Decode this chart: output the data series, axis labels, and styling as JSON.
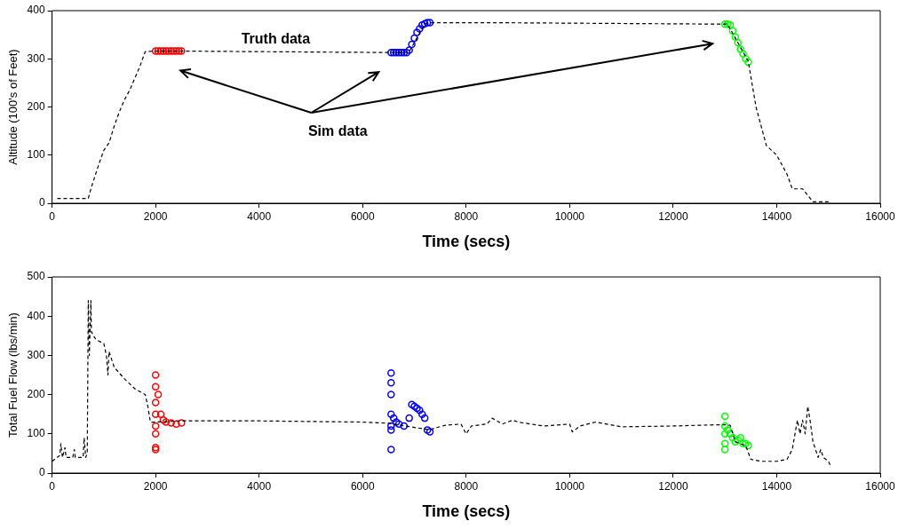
{
  "chart_data": [
    {
      "type": "line",
      "xlabel": "Time (secs)",
      "ylabel": "Altitude (100's of Feet)",
      "xlim": [
        0,
        16000
      ],
      "xticks": [
        0,
        2000,
        4000,
        6000,
        8000,
        10000,
        12000,
        14000,
        16000
      ],
      "ylim": [
        0,
        400
      ],
      "yticks": [
        0,
        100,
        200,
        300,
        400
      ],
      "grid": false,
      "legend": false,
      "annotations": [
        "Truth data",
        "Sim data"
      ],
      "series": [
        {
          "color": "#000000",
          "line_style": "dashed",
          "marker": "none",
          "x": [
            100,
            700,
            750,
            900,
            1000,
            1100,
            1200,
            1300,
            1400,
            1500,
            1600,
            1700,
            1800,
            2000,
            2500,
            6500,
            6800,
            6900,
            7200,
            7300,
            8500,
            12900,
            13050,
            13450,
            13600,
            13700,
            13800,
            14000,
            14200,
            14300,
            14500,
            14700,
            15000
          ],
          "values": [
            10,
            10,
            30,
            80,
            110,
            125,
            160,
            190,
            215,
            235,
            260,
            285,
            315,
            316,
            316,
            313,
            313,
            315,
            372,
            375,
            375,
            372,
            372,
            295,
            200,
            160,
            120,
            100,
            60,
            30,
            30,
            3,
            3
          ]
        },
        {
          "type": "scatter",
          "color": "#ff0000",
          "marker": "circle",
          "x": [
            2000,
            2050,
            2100,
            2150,
            2200,
            2250,
            2300,
            2350,
            2400,
            2450,
            2500
          ],
          "values": [
            316,
            316,
            316,
            316,
            316,
            316,
            316,
            316,
            316,
            316,
            316
          ]
        },
        {
          "type": "scatter",
          "color": "#0000ff",
          "marker": "circle",
          "x": [
            6550,
            6600,
            6650,
            6700,
            6750,
            6800,
            6850,
            6900,
            6950,
            7000,
            7050,
            7100,
            7150,
            7200,
            7250,
            7300
          ],
          "values": [
            313,
            313,
            313,
            313,
            313,
            313,
            313,
            318,
            330,
            343,
            355,
            362,
            370,
            373,
            375,
            375
          ]
        },
        {
          "type": "scatter",
          "color": "#00ff00",
          "marker": "circle",
          "x": [
            13000,
            13050,
            13100,
            13150,
            13200,
            13250,
            13300,
            13350,
            13400,
            13450
          ],
          "values": [
            372,
            372,
            370,
            358,
            345,
            333,
            320,
            310,
            300,
            293
          ]
        }
      ]
    },
    {
      "type": "line",
      "xlabel": "Time (secs)",
      "ylabel": "Total Fuel Flow (lbs/min)",
      "xlim": [
        0,
        16000
      ],
      "xticks": [
        0,
        2000,
        4000,
        6000,
        8000,
        10000,
        12000,
        14000,
        16000
      ],
      "ylim": [
        0,
        500
      ],
      "yticks": [
        0,
        100,
        200,
        300,
        400,
        500
      ],
      "grid": false,
      "legend": false,
      "series": [
        {
          "color": "#000000",
          "line_style": "dashed",
          "marker": "none",
          "x": [
            0,
            100,
            150,
            170,
            200,
            250,
            270,
            400,
            430,
            450,
            600,
            620,
            650,
            680,
            700,
            720,
            750,
            760,
            800,
            850,
            1000,
            1050,
            1080,
            1100,
            1150,
            1200,
            1400,
            1600,
            1800,
            1850,
            1900,
            1950,
            2500,
            4000,
            6000,
            6500,
            7300,
            7400,
            7600,
            7900,
            8000,
            8100,
            8400,
            8500,
            8700,
            8900,
            9000,
            9500,
            10000,
            10050,
            10200,
            10500,
            11000,
            12000,
            12800,
            13000,
            13100,
            13200,
            13400,
            13500,
            13700,
            14000,
            14200,
            14300,
            14400,
            14450,
            14500,
            14550,
            14600,
            14650,
            14700,
            14800,
            14850,
            14900,
            15000,
            15050
          ],
          "values": [
            30,
            40,
            45,
            75,
            40,
            65,
            40,
            40,
            60,
            40,
            40,
            90,
            40,
            50,
            440,
            300,
            440,
            360,
            350,
            340,
            330,
            300,
            250,
            310,
            290,
            270,
            240,
            215,
            200,
            170,
            130,
            130,
            133,
            133,
            130,
            127,
            110,
            115,
            122,
            125,
            100,
            120,
            125,
            140,
            125,
            135,
            130,
            120,
            125,
            105,
            120,
            130,
            118,
            120,
            123,
            123,
            122,
            80,
            70,
            35,
            30,
            30,
            35,
            60,
            135,
            100,
            135,
            100,
            170,
            130,
            80,
            40,
            60,
            40,
            30,
            15
          ]
        },
        {
          "type": "scatter",
          "color": "#ff0000",
          "marker": "circle",
          "x": [
            2000,
            2000,
            2000,
            2000,
            2000,
            2000,
            2000,
            2000,
            2050,
            2100,
            2150,
            2200,
            2300,
            2400,
            2500
          ],
          "values": [
            60,
            65,
            100,
            120,
            150,
            180,
            220,
            250,
            200,
            150,
            135,
            130,
            128,
            125,
            128
          ]
        },
        {
          "type": "scatter",
          "color": "#0000ff",
          "marker": "circle",
          "x": [
            6550,
            6550,
            6550,
            6550,
            6550,
            6550,
            6550,
            6600,
            6650,
            6700,
            6800,
            6900,
            6950,
            7000,
            7050,
            7100,
            7150,
            7200,
            7250,
            7300
          ],
          "values": [
            60,
            110,
            120,
            150,
            200,
            230,
            255,
            140,
            130,
            125,
            120,
            140,
            175,
            170,
            165,
            160,
            150,
            140,
            110,
            105
          ]
        },
        {
          "type": "scatter",
          "color": "#00ff00",
          "marker": "circle",
          "x": [
            13000,
            13000,
            13000,
            13000,
            13000,
            13050,
            13100,
            13150,
            13200,
            13250,
            13300,
            13350,
            13400,
            13450
          ],
          "values": [
            60,
            75,
            100,
            120,
            145,
            110,
            100,
            90,
            80,
            85,
            90,
            75,
            75,
            70
          ]
        }
      ]
    }
  ]
}
